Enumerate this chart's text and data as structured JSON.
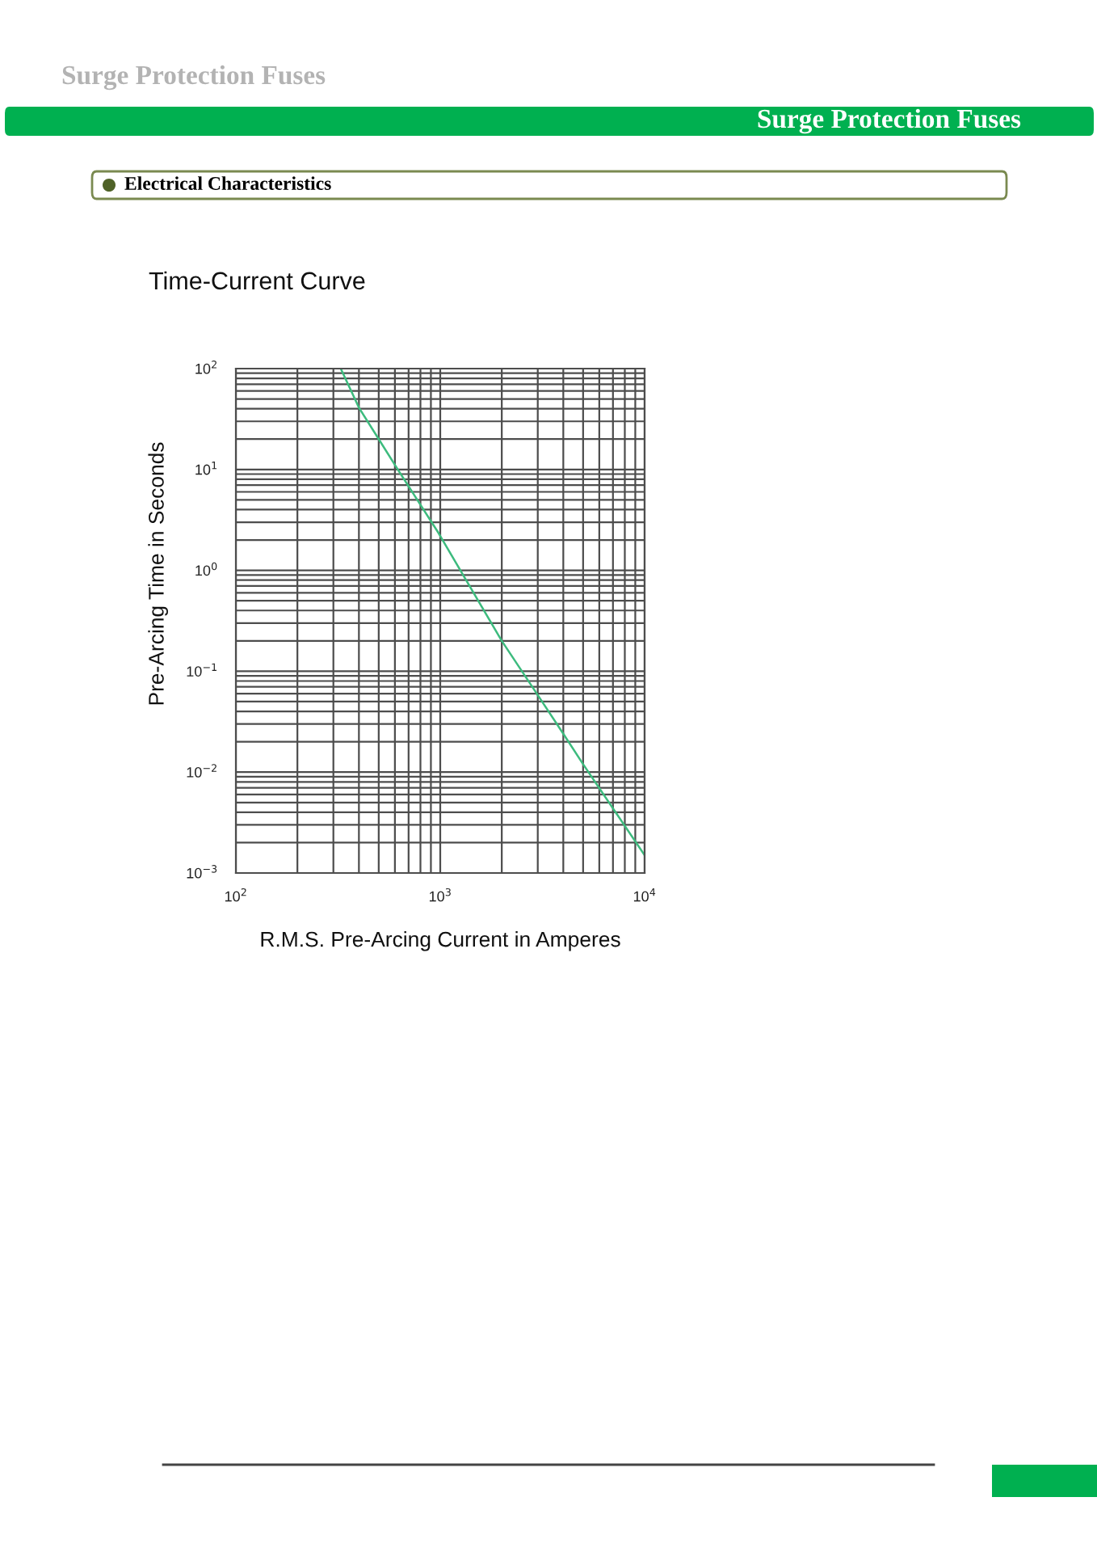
{
  "chart_data": {
    "type": "line",
    "title": "Time-Current Curve",
    "xlabel": "R.M.S. Pre-Arcing Current in Amperes",
    "ylabel": "Pre-Arcing Time in Seconds",
    "annotations": [
      "Surge Protection Fuses",
      "Surge Protection Fuses",
      "Electrical Characteristics"
    ],
    "x": [
      326,
      400,
      500,
      620,
      980,
      2000,
      3000,
      4000,
      5000,
      10000
    ],
    "series": [
      {
        "color": "#3dbb7e",
        "values": [
          100,
          41,
          20,
          10,
          2.35,
          0.2,
          0.058,
          0.024,
          0.012,
          0.0015
        ]
      }
    ],
    "log": "xy",
    "xlim": [
      100,
      10000
    ],
    "ylim": [
      0.001,
      100
    ],
    "xticks": [
      {
        "value": 100,
        "label": "10$^{2}$"
      },
      {
        "value": 1000,
        "label": "10$^{3}$"
      },
      {
        "value": 10000,
        "label": "10$^{4}$"
      }
    ],
    "yticks": [
      {
        "value": 0.001,
        "label": "10$^{−3}$"
      },
      {
        "value": 0.01,
        "label": "10$^{−2}$"
      },
      {
        "value": 0.1,
        "label": "10$^{−1}$"
      },
      {
        "value": 1,
        "label": "10$^{0}$"
      },
      {
        "value": 10,
        "label": "10$^{1}$"
      },
      {
        "value": 100,
        "label": "10$^{2}$"
      }
    ],
    "grid": true,
    "line_style": "solid"
  }
}
